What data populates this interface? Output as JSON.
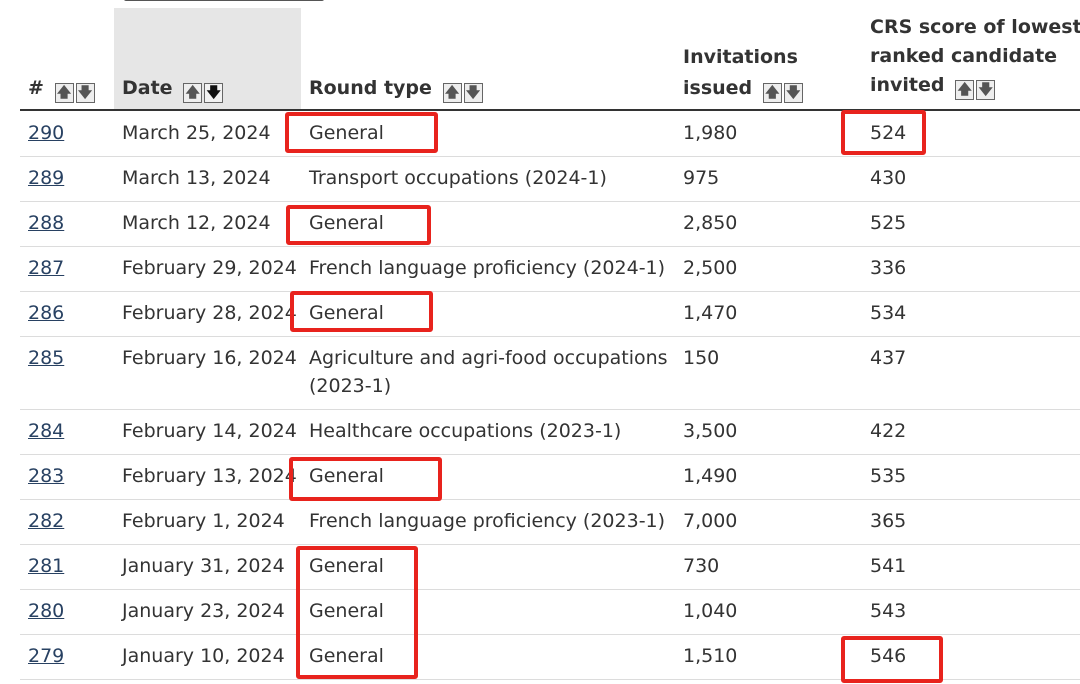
{
  "header": {
    "num": "#",
    "date": "Date",
    "round_type": "Round type",
    "invitations_l1": "Invitations",
    "invitations_l2": "issued",
    "crs_l1": "CRS score of lowest-",
    "crs_l2": "ranked candidate",
    "crs_l3": "invited",
    "sort_up": "🡅",
    "sort_down": "🡇"
  },
  "rows": [
    {
      "num": "290",
      "date": "March 25, 2024",
      "round_type": "General",
      "invitations": "1,980",
      "crs": "524"
    },
    {
      "num": "289",
      "date": "March 13, 2024",
      "round_type": "Transport occupations (2024-1)",
      "invitations": "975",
      "crs": "430"
    },
    {
      "num": "288",
      "date": "March 12, 2024",
      "round_type": "General",
      "invitations": "2,850",
      "crs": "525"
    },
    {
      "num": "287",
      "date": "February 29, 2024",
      "round_type": "French language proficiency (2024-1)",
      "invitations": "2,500",
      "crs": "336"
    },
    {
      "num": "286",
      "date": "February 28, 2024",
      "round_type": "General",
      "invitations": "1,470",
      "crs": "534"
    },
    {
      "num": "285",
      "date": "February 16, 2024",
      "round_type": "Agriculture and agri-food occupations (2023-1)",
      "invitations": "150",
      "crs": "437"
    },
    {
      "num": "284",
      "date": "February 14, 2024",
      "round_type": "Healthcare occupations (2023-1)",
      "invitations": "3,500",
      "crs": "422"
    },
    {
      "num": "283",
      "date": "February 13, 2024",
      "round_type": "General",
      "invitations": "1,490",
      "crs": "535"
    },
    {
      "num": "282",
      "date": "February 1, 2024",
      "round_type": "French language proficiency (2023-1)",
      "invitations": "7,000",
      "crs": "365"
    },
    {
      "num": "281",
      "date": "January 31, 2024",
      "round_type": "General",
      "invitations": "730",
      "crs": "541"
    },
    {
      "num": "280",
      "date": "January 23, 2024",
      "round_type": "General",
      "invitations": "1,040",
      "crs": "543"
    },
    {
      "num": "279",
      "date": "January 10, 2024",
      "round_type": "General",
      "invitations": "1,510",
      "crs": "546"
    }
  ],
  "highlight_color": "#e8231d"
}
